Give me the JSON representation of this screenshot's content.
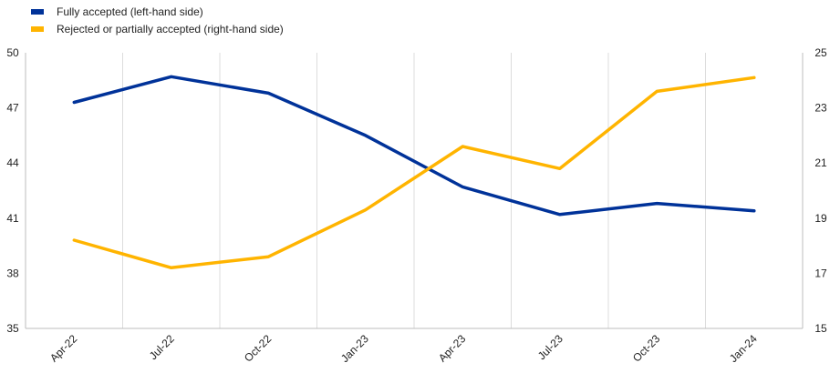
{
  "chart_data": {
    "type": "line",
    "categories": [
      "Apr-22",
      "Jul-22",
      "Oct-22",
      "Jan-23",
      "Apr-23",
      "Jul-23",
      "Oct-23",
      "Jan-24"
    ],
    "series": [
      {
        "name": "Fully accepted (left-hand side)",
        "axis": "left",
        "color": "#003299",
        "values": [
          47.3,
          48.7,
          47.8,
          45.5,
          42.7,
          41.2,
          41.8,
          41.4
        ]
      },
      {
        "name": "Rejected or partially accepted (right-hand side)",
        "axis": "right",
        "color": "#FFB400",
        "values": [
          18.2,
          17.2,
          17.6,
          19.3,
          21.6,
          20.8,
          23.6,
          24.1
        ]
      }
    ],
    "y_left": {
      "ylim": [
        35,
        50
      ],
      "ticks": [
        35,
        38,
        41,
        44,
        47,
        50
      ]
    },
    "y_right": {
      "ylim": [
        15,
        25
      ],
      "ticks": [
        15,
        17,
        19,
        21,
        23,
        25
      ]
    },
    "grid": "vertical",
    "legend_position": "top-left"
  }
}
